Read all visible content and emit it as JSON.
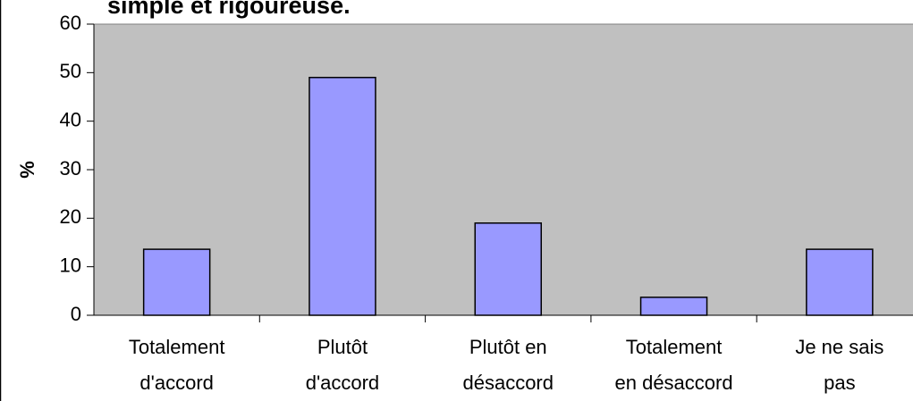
{
  "chart_data": {
    "type": "bar",
    "title": "simple et rigoureuse.",
    "y_label": "%",
    "categories": [
      "Totalement\nd'accord",
      "Plutôt\nd'accord",
      "Plutôt en\ndésaccord",
      "Totalement\nen désaccord",
      "Je ne sais\npas"
    ],
    "values": [
      13.6,
      49,
      19,
      3.7,
      13.6
    ],
    "color": "#9999ff",
    "ylim": [
      0,
      60
    ],
    "yticks": [
      0,
      10,
      20,
      30,
      40,
      50,
      60
    ]
  }
}
